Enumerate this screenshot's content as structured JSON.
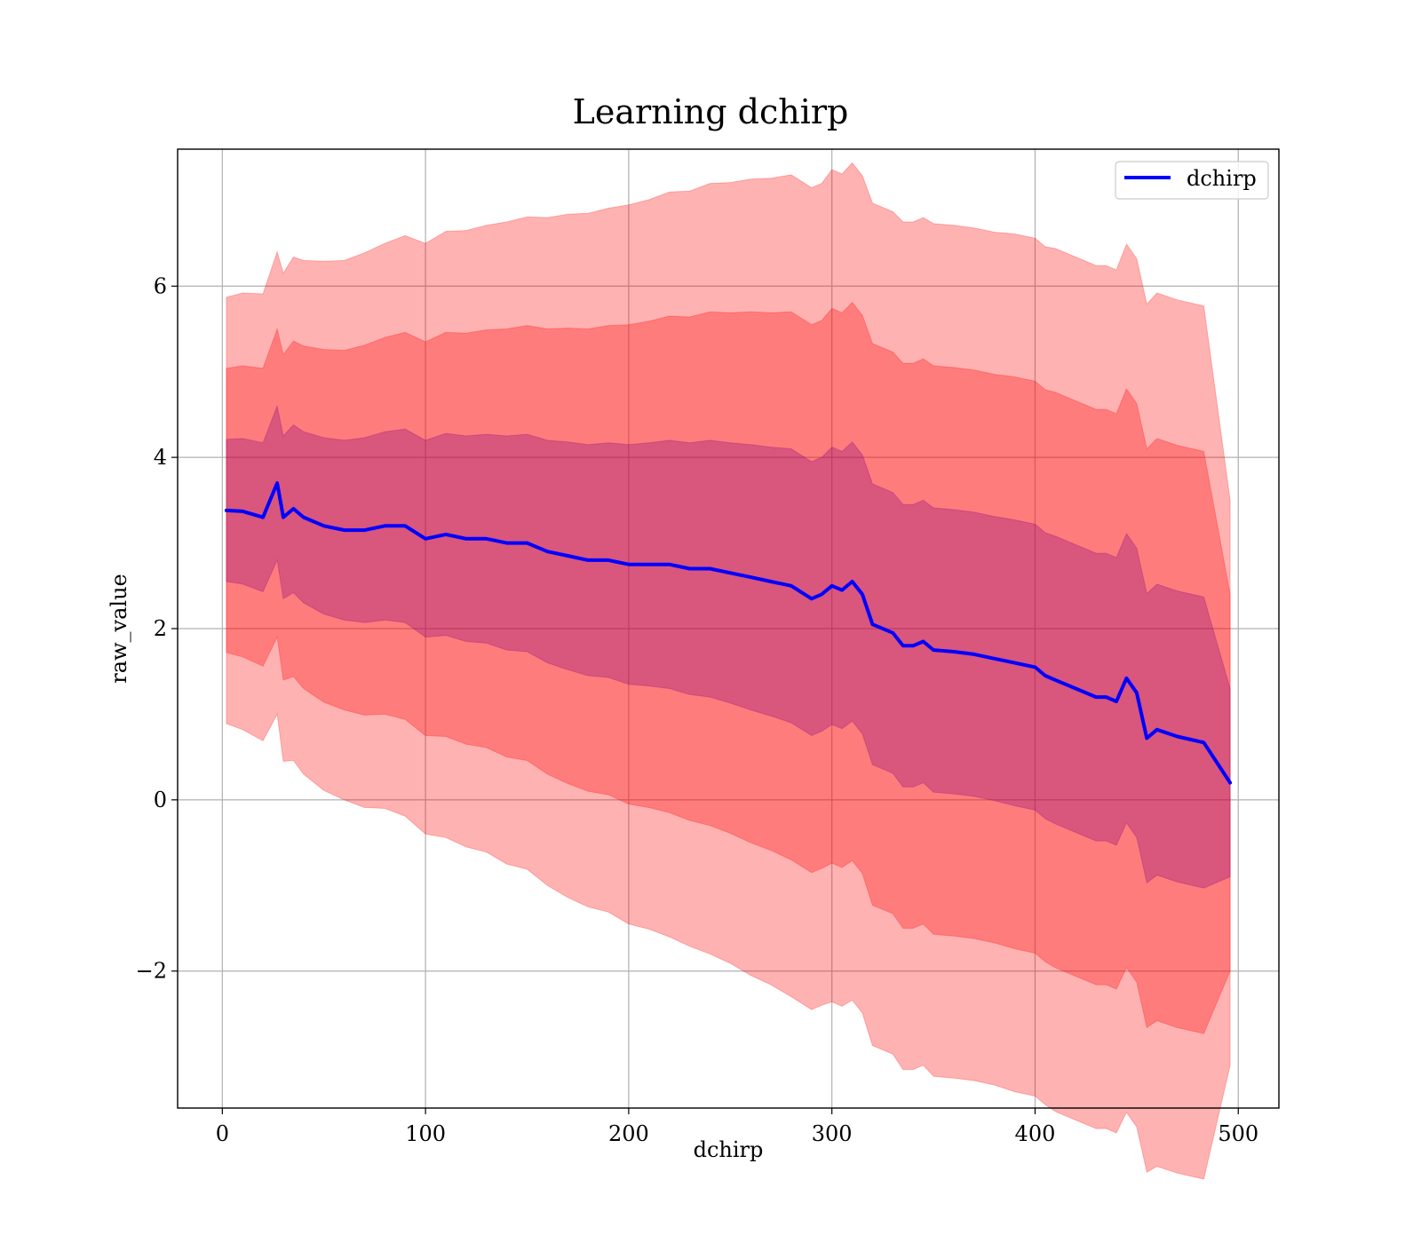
{
  "chart_data": {
    "type": "line",
    "title": "Learning dchirp",
    "xlabel": "dchirp",
    "ylabel": "raw_value",
    "xlim": [
      -22,
      520
    ],
    "ylim": [
      -3.6,
      7.6
    ],
    "xticks": [
      0,
      100,
      200,
      300,
      400,
      500
    ],
    "yticks": [
      -2,
      0,
      2,
      4,
      6
    ],
    "xtick_labels": [
      "0",
      "100",
      "200",
      "300",
      "400",
      "500"
    ],
    "ytick_labels": [
      "−2",
      "0",
      "2",
      "4",
      "6"
    ],
    "grid": true,
    "legend": {
      "placement": "top-right",
      "entries": [
        "dchirp"
      ]
    },
    "colors": {
      "line": "#0000ff",
      "band": "#ff0000"
    },
    "bands": [
      {
        "sigma": 3,
        "opacity": 0.3,
        "color": "#ff0000"
      },
      {
        "sigma": 2,
        "opacity": 0.3,
        "color": "#ff0000"
      },
      {
        "sigma": 1,
        "opacity": 0.3,
        "color": "#800080"
      }
    ],
    "series": [
      {
        "name": "dchirp",
        "color": "#0000ff",
        "x": [
          2,
          10,
          20,
          27,
          30,
          35,
          40,
          50,
          60,
          70,
          80,
          90,
          100,
          110,
          120,
          130,
          140,
          150,
          160,
          170,
          180,
          190,
          200,
          210,
          220,
          230,
          240,
          250,
          260,
          270,
          280,
          290,
          295,
          300,
          305,
          310,
          315,
          320,
          330,
          335,
          340,
          345,
          350,
          360,
          370,
          380,
          390,
          400,
          405,
          410,
          420,
          430,
          435,
          440,
          445,
          450,
          455,
          460,
          470,
          483,
          496
        ],
        "y": [
          3.38,
          3.37,
          3.3,
          3.7,
          3.3,
          3.4,
          3.3,
          3.2,
          3.15,
          3.15,
          3.2,
          3.2,
          3.05,
          3.1,
          3.05,
          3.05,
          3.0,
          3.0,
          2.9,
          2.85,
          2.8,
          2.8,
          2.75,
          2.75,
          2.75,
          2.7,
          2.7,
          2.65,
          2.6,
          2.55,
          2.5,
          2.35,
          2.4,
          2.5,
          2.45,
          2.55,
          2.4,
          2.05,
          1.95,
          1.8,
          1.8,
          1.85,
          1.75,
          1.73,
          1.7,
          1.65,
          1.6,
          1.55,
          1.45,
          1.4,
          1.3,
          1.2,
          1.2,
          1.15,
          1.42,
          1.25,
          0.72,
          0.82,
          0.74,
          0.67,
          0.2
        ],
        "sigma": [
          0.83,
          0.85,
          0.87,
          0.9,
          0.95,
          0.98,
          1.0,
          1.03,
          1.05,
          1.08,
          1.1,
          1.13,
          1.15,
          1.18,
          1.2,
          1.22,
          1.25,
          1.27,
          1.3,
          1.33,
          1.35,
          1.37,
          1.4,
          1.42,
          1.45,
          1.47,
          1.5,
          1.52,
          1.55,
          1.57,
          1.6,
          1.6,
          1.6,
          1.62,
          1.62,
          1.63,
          1.63,
          1.64,
          1.64,
          1.65,
          1.65,
          1.65,
          1.66,
          1.66,
          1.66,
          1.66,
          1.67,
          1.67,
          1.67,
          1.68,
          1.68,
          1.68,
          1.68,
          1.68,
          1.69,
          1.69,
          1.69,
          1.7,
          1.7,
          1.7,
          1.1
        ]
      }
    ]
  }
}
